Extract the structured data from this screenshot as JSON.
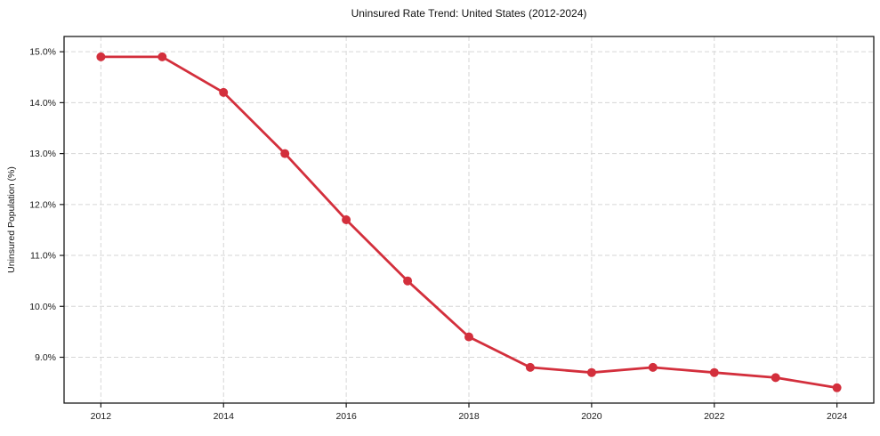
{
  "chart_data": {
    "type": "line",
    "title": "Uninsured Rate Trend: United States (2012-2024)",
    "xlabel": "",
    "ylabel": "Uninsured Population (%)",
    "x": [
      2012,
      2013,
      2014,
      2015,
      2016,
      2017,
      2018,
      2019,
      2020,
      2021,
      2022,
      2023,
      2024
    ],
    "series": [
      {
        "name": "United States",
        "values": [
          14.9,
          14.9,
          14.2,
          13.0,
          11.7,
          10.5,
          9.4,
          8.8,
          8.7,
          8.8,
          8.7,
          8.6,
          8.4
        ]
      }
    ],
    "xlim": [
      2011.4,
      2024.6
    ],
    "ylim": [
      8.1,
      15.3
    ],
    "xticks": {
      "values": [
        2012,
        2014,
        2016,
        2018,
        2020,
        2022,
        2024
      ],
      "labels": [
        "2012",
        "2014",
        "2016",
        "2018",
        "2020",
        "2022",
        "2024"
      ]
    },
    "yticks": {
      "values": [
        9,
        10,
        11,
        12,
        13,
        14,
        15
      ],
      "labels": [
        "9.0%",
        "10.0%",
        "11.0%",
        "12.0%",
        "13.0%",
        "14.0%",
        "15.0%"
      ]
    },
    "grid": true,
    "grid_style": "dashed",
    "legend": false,
    "marker": "circle",
    "colors": {
      "line": "#d32f3c",
      "marker": "#d32f3c",
      "grid": "#d6d6d6",
      "spine": "#1a1a1a",
      "text": "#1a1a1a",
      "background": "#ffffff"
    }
  }
}
